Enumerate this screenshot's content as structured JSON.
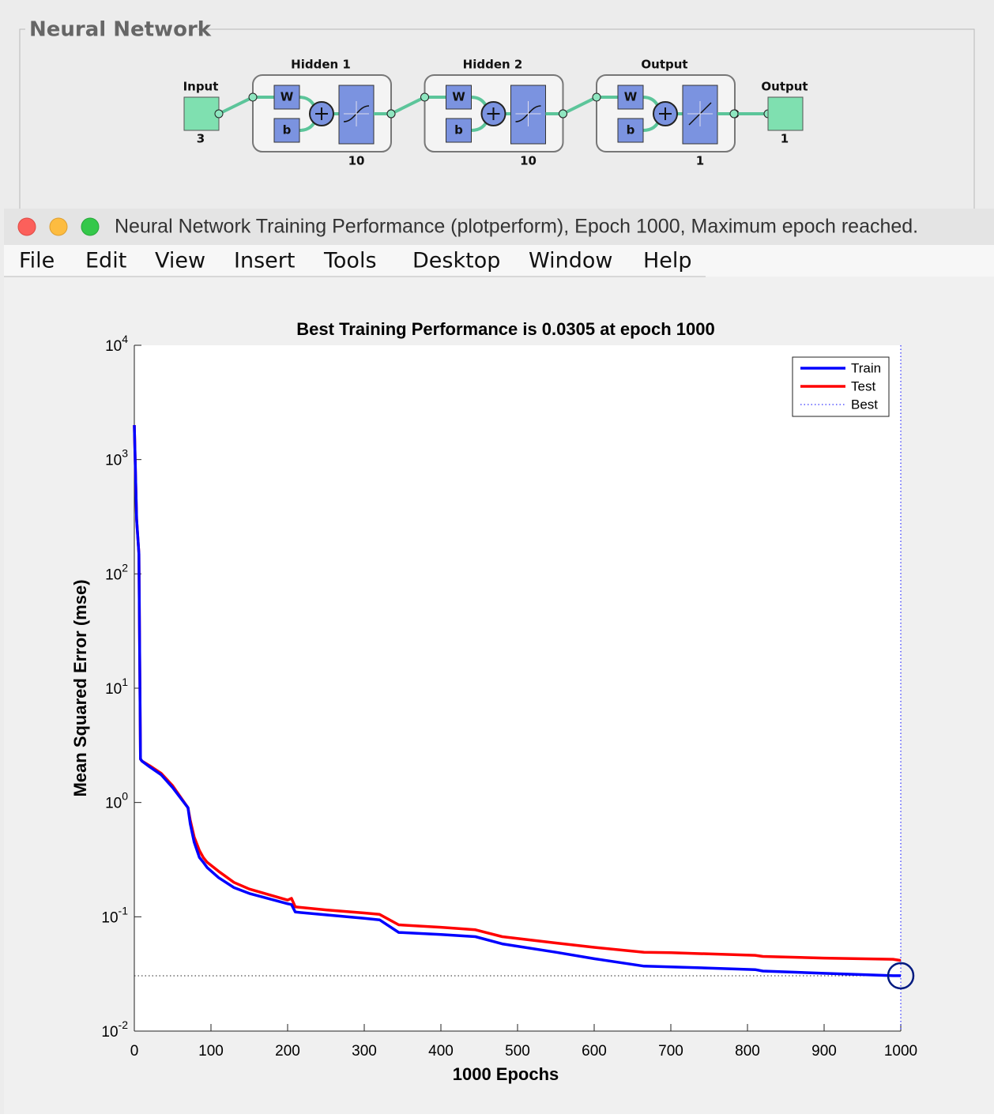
{
  "panel": {
    "title": "Neural Network",
    "input": {
      "label": "Input",
      "size": 3
    },
    "layers": [
      {
        "label": "Hidden 1",
        "weight": "W",
        "bias": "b",
        "size": 10
      },
      {
        "label": "Hidden 2",
        "weight": "W",
        "bias": "b",
        "size": 10
      },
      {
        "label": "Output",
        "weight": "W",
        "bias": "b",
        "size": 1
      }
    ],
    "output": {
      "label": "Output",
      "size": 1
    }
  },
  "window": {
    "title": "Neural Network Training Performance (plotperform), Epoch 1000, Maximum epoch reached.",
    "menu": [
      "File",
      "Edit",
      "View",
      "Insert",
      "Tools",
      "Desktop",
      "Window",
      "Help"
    ]
  },
  "chart_data": {
    "type": "line",
    "title": "Best Training Performance is 0.0305 at epoch 1000",
    "xlabel": "1000 Epochs",
    "ylabel": "Mean Squared Error  (mse)",
    "log_y": true,
    "xlim": [
      0,
      1000
    ],
    "xticks": [
      0,
      100,
      200,
      300,
      400,
      500,
      600,
      700,
      800,
      900,
      1000
    ],
    "ylim": [
      0.01,
      10000
    ],
    "yticks": [
      {
        "value": 0.01,
        "label": "10^-2"
      },
      {
        "value": 0.1,
        "label": "10^-1"
      },
      {
        "value": 1,
        "label": "10^0"
      },
      {
        "value": 10,
        "label": "10^1"
      },
      {
        "value": 100,
        "label": "10^2"
      },
      {
        "value": 1000,
        "label": "10^3"
      },
      {
        "value": 10000,
        "label": "10^4"
      }
    ],
    "x": [
      0,
      3,
      6,
      8,
      10,
      20,
      35,
      50,
      70,
      73,
      78,
      85,
      90,
      95,
      110,
      130,
      150,
      200,
      205,
      210,
      250,
      300,
      320,
      345,
      400,
      445,
      480,
      550,
      600,
      665,
      700,
      810,
      820,
      900,
      990,
      1000
    ],
    "series": [
      {
        "name": "Train",
        "color": "#0000ff",
        "values": [
          2000,
          300,
          150,
          2.4,
          2.3,
          2.05,
          1.75,
          1.35,
          0.9,
          0.65,
          0.45,
          0.33,
          0.3,
          0.27,
          0.22,
          0.18,
          0.16,
          0.13,
          0.128,
          0.11,
          0.104,
          0.097,
          0.094,
          0.073,
          0.07,
          0.067,
          0.058,
          0.049,
          0.043,
          0.037,
          0.0365,
          0.0345,
          0.0335,
          0.032,
          0.0305,
          0.0305
        ]
      },
      {
        "name": "Test",
        "color": "#ff0000",
        "values": [
          2000,
          300,
          150,
          2.4,
          2.3,
          2.1,
          1.8,
          1.4,
          0.9,
          0.7,
          0.5,
          0.38,
          0.33,
          0.3,
          0.25,
          0.2,
          0.175,
          0.14,
          0.145,
          0.122,
          0.115,
          0.108,
          0.105,
          0.085,
          0.081,
          0.077,
          0.067,
          0.059,
          0.054,
          0.049,
          0.0485,
          0.046,
          0.045,
          0.0435,
          0.0425,
          0.0415
        ]
      }
    ],
    "best": {
      "name": "Best",
      "color": "#0000ff",
      "epoch": 1000,
      "value": 0.0305
    },
    "legend": "upper right"
  }
}
